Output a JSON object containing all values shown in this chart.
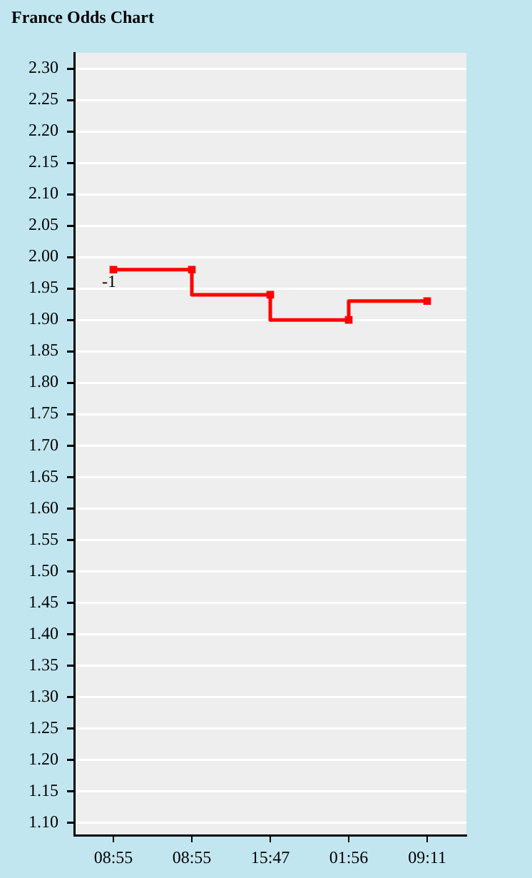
{
  "chart_data": {
    "type": "step",
    "title": "France Odds Chart",
    "categories": [
      "08:55",
      "08:55",
      "15:47",
      "01:56",
      "09:11"
    ],
    "series": [
      {
        "color": "#ff0000",
        "values": [
          1.98,
          1.98,
          1.94,
          1.9,
          1.93
        ]
      }
    ],
    "ylim": [
      1.08,
      2.325
    ],
    "yticks": [
      {
        "value": 1.1,
        "label": "1.10"
      },
      1.15,
      {
        "value": 1.2,
        "label": "1.20"
      },
      1.25,
      {
        "value": 1.3,
        "label": "1.30"
      },
      1.35,
      {
        "value": 1.4,
        "label": "1.40"
      },
      1.45,
      {
        "value": 1.5,
        "label": "1.50"
      },
      1.55,
      {
        "value": 1.6,
        "label": "1.60"
      },
      1.65,
      {
        "value": 1.7,
        "label": "1.70"
      },
      1.75,
      {
        "value": 1.8,
        "label": "1.80"
      },
      1.85,
      {
        "value": 1.9,
        "label": "1.90"
      },
      1.95,
      {
        "value": 2.0,
        "label": "2.00"
      },
      2.05,
      {
        "value": 2.1,
        "label": "2.10"
      },
      2.15,
      {
        "value": 2.2,
        "label": "2.20"
      },
      2.25,
      {
        "value": 2.3,
        "label": "2.30"
      }
    ],
    "annotations": [
      {
        "text": "-1",
        "x": "08:55",
        "y": 1.98
      }
    ],
    "grid": "y",
    "legend": false,
    "marker": "square",
    "line_style": "solid"
  }
}
